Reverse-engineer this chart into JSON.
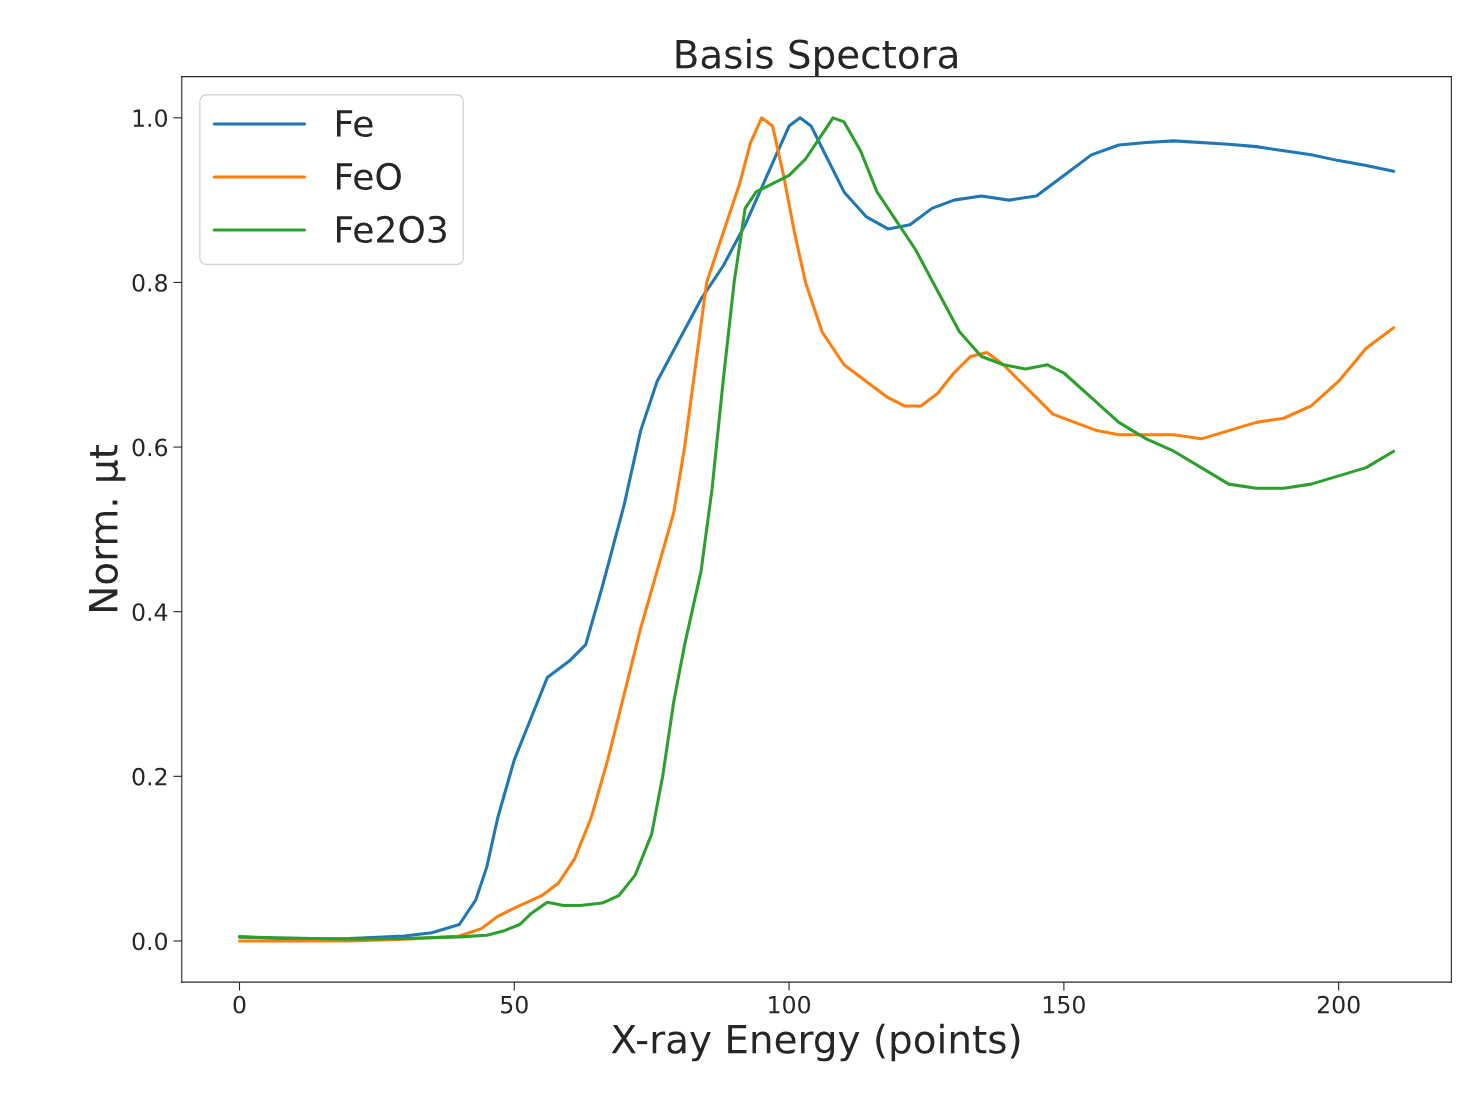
{
  "chart_data": {
    "type": "line",
    "title": "Basis Spectora",
    "xlabel": "X-ray Energy (points)",
    "ylabel": "Norm. μt",
    "xlim": [
      -10.5,
      220.5
    ],
    "xticks": [
      0,
      50,
      100,
      150,
      200
    ],
    "ylim": [
      -0.05,
      1.05
    ],
    "yticks": [
      {
        "value": 0,
        "label": "0.0"
      },
      {
        "value": 0.2,
        "label": "0.2"
      },
      {
        "value": 0.4,
        "label": "0.4"
      },
      {
        "value": 0.6,
        "label": "0.6"
      },
      {
        "value": 0.8,
        "label": "0.8"
      },
      {
        "value": 1.0,
        "label": "1.0"
      }
    ],
    "grid": false,
    "legend": "top left",
    "marker": "none",
    "line_style": "solid",
    "series": [
      {
        "name": "Fe",
        "color": "#1f77b4",
        "x": [
          0,
          10,
          20,
          30,
          35,
          40,
          43,
          45,
          47,
          50,
          53,
          56,
          60,
          63,
          66,
          70,
          73,
          76,
          80,
          84,
          88,
          92,
          96,
          100,
          102,
          104,
          107,
          110,
          114,
          118,
          122,
          126,
          130,
          135,
          140,
          145,
          150,
          155,
          160,
          165,
          170,
          180,
          185,
          190,
          195,
          200,
          205,
          210
        ],
        "values": [
          0.005,
          0.002,
          0.003,
          0.006,
          0.01,
          0.02,
          0.05,
          0.09,
          0.15,
          0.22,
          0.27,
          0.32,
          0.34,
          0.36,
          0.43,
          0.53,
          0.62,
          0.68,
          0.73,
          0.78,
          0.82,
          0.87,
          0.93,
          0.99,
          1.0,
          0.99,
          0.95,
          0.91,
          0.88,
          0.865,
          0.87,
          0.89,
          0.9,
          0.905,
          0.9,
          0.905,
          0.93,
          0.955,
          0.967,
          0.97,
          0.972,
          0.968,
          0.965,
          0.96,
          0.955,
          0.948,
          0.942,
          0.935
        ]
      },
      {
        "name": "FeO",
        "color": "#ff7f0e",
        "x": [
          0,
          20,
          30,
          40,
          44,
          47,
          50,
          55,
          58,
          61,
          64,
          67,
          70,
          73,
          76,
          79,
          81,
          83,
          85,
          88,
          91,
          93,
          95,
          97,
          99,
          101,
          103,
          106,
          110,
          114,
          118,
          121,
          124,
          127,
          130,
          133,
          136,
          139,
          142,
          145,
          148,
          152,
          156,
          160,
          165,
          170,
          175,
          180,
          185,
          190,
          195,
          200,
          205,
          210
        ],
        "values": [
          0.0,
          0.0,
          0.002,
          0.006,
          0.015,
          0.03,
          0.04,
          0.055,
          0.07,
          0.1,
          0.15,
          0.22,
          0.3,
          0.38,
          0.45,
          0.52,
          0.6,
          0.7,
          0.8,
          0.86,
          0.92,
          0.97,
          1.0,
          0.99,
          0.93,
          0.86,
          0.8,
          0.74,
          0.7,
          0.68,
          0.66,
          0.65,
          0.65,
          0.665,
          0.69,
          0.71,
          0.715,
          0.7,
          0.68,
          0.66,
          0.64,
          0.63,
          0.62,
          0.615,
          0.615,
          0.615,
          0.61,
          0.62,
          0.63,
          0.635,
          0.65,
          0.68,
          0.72,
          0.745
        ]
      },
      {
        "name": "Fe2O3",
        "color": "#2ca02c",
        "x": [
          0,
          20,
          30,
          40,
          45,
          48,
          51,
          53,
          56,
          59,
          62,
          66,
          69,
          72,
          75,
          77,
          79,
          81,
          84,
          86,
          88,
          90,
          92,
          94,
          97,
          100,
          103,
          106,
          108,
          110,
          113,
          116,
          119,
          123,
          127,
          131,
          135,
          139,
          143,
          147,
          150,
          155,
          160,
          165,
          170,
          175,
          180,
          185,
          190,
          195,
          200,
          205,
          210
        ],
        "values": [
          0.005,
          0.002,
          0.003,
          0.005,
          0.007,
          0.012,
          0.02,
          0.033,
          0.047,
          0.043,
          0.043,
          0.046,
          0.055,
          0.08,
          0.13,
          0.2,
          0.29,
          0.36,
          0.45,
          0.55,
          0.68,
          0.8,
          0.89,
          0.91,
          0.92,
          0.93,
          0.95,
          0.98,
          1.0,
          0.995,
          0.96,
          0.91,
          0.88,
          0.84,
          0.79,
          0.74,
          0.71,
          0.7,
          0.695,
          0.7,
          0.69,
          0.66,
          0.63,
          0.61,
          0.595,
          0.575,
          0.555,
          0.55,
          0.55,
          0.555,
          0.565,
          0.575,
          0.595
        ]
      }
    ]
  }
}
